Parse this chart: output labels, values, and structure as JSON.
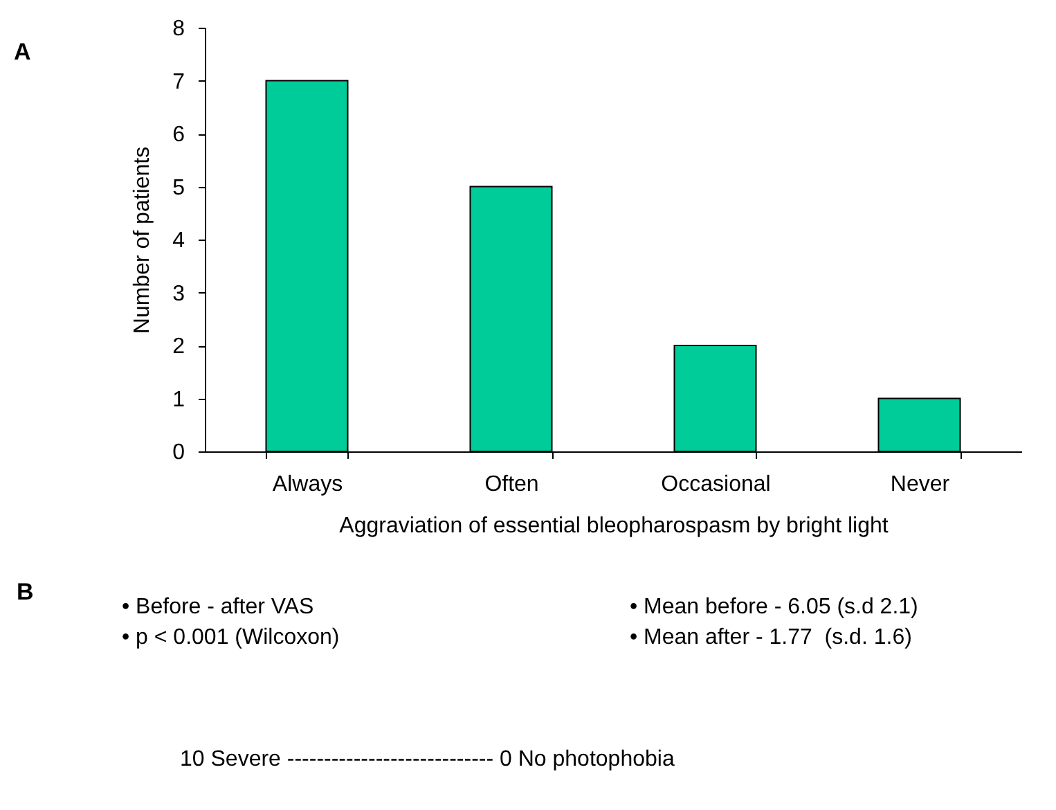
{
  "chart_data": {
    "type": "bar",
    "categories": [
      "Always",
      "Often",
      "Occasional",
      "Never"
    ],
    "values": [
      7,
      5,
      2,
      1
    ],
    "color": "#00cc99",
    "xlabel": "Aggraviation of essential bleopharospasm by bright light",
    "ylabel": "Number of patients",
    "ylim": [
      0,
      8
    ],
    "yticks": [
      0,
      1,
      2,
      3,
      4,
      5,
      6,
      7,
      8
    ],
    "annotations": [
      "A",
      "B",
      "• Before - after VAS",
      "• p < 0.001 (Wilcoxon)",
      "• Mean before - 6.05 (s.d 2.1)",
      "• Mean after - 1.77  (s.d. 1.6)",
      "10 Severe ---------------------------- 0 No photophobia"
    ]
  }
}
